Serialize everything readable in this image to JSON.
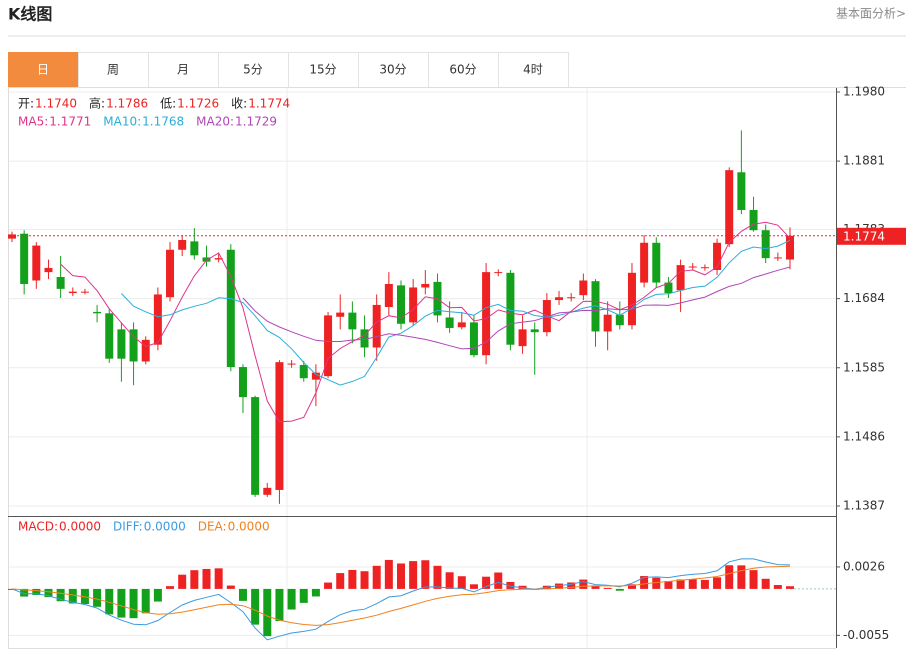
{
  "header": {
    "title": "K线图",
    "link": "基本面分析>"
  },
  "tabs": [
    "日",
    "周",
    "月",
    "5分",
    "15分",
    "30分",
    "60分",
    "4时"
  ],
  "chart_data": {
    "type": "candlestick",
    "ohlc_labels": [
      {
        "label": "开:",
        "value": "1.1740"
      },
      {
        "label": "高:",
        "value": "1.1786"
      },
      {
        "label": "低:",
        "value": "1.1726"
      },
      {
        "label": "收:",
        "value": "1.1774"
      }
    ],
    "ma": [
      {
        "label": "MA5: ",
        "value": "1.1771",
        "color": "#e0338a"
      },
      {
        "label": "MA10: ",
        "value": "1.1768",
        "color": "#2aaed8"
      },
      {
        "label": "MA20: ",
        "value": "1.1729",
        "color": "#b146b8"
      }
    ],
    "up_color": "#ee2222",
    "down_color": "#13a11c",
    "open": [
      1.177,
      1.1777,
      1.171,
      1.1722,
      1.1715,
      1.1692,
      1.1693,
      1.1665,
      1.1663,
      1.164,
      1.164,
      1.1594,
      1.1618,
      1.1686,
      1.1754,
      1.1766,
      1.1743,
      1.174,
      1.1754,
      1.1586,
      1.1543,
      1.1403,
      1.141,
      1.159,
      1.1589,
      1.1568,
      1.1573,
      1.1658,
      1.1664,
      1.164,
      1.1614,
      1.1672,
      1.1703,
      1.165,
      1.17,
      1.1708,
      1.1657,
      1.1643,
      1.165,
      1.1603,
      1.1721,
      1.1721,
      1.1616,
      1.164,
      1.1636,
      1.1682,
      1.1685,
      1.1689,
      1.1709,
      1.1637,
      1.1661,
      1.1646,
      1.1707,
      1.1764,
      1.1707,
      1.1696,
      1.1729,
      1.1728,
      1.1725,
      1.1762,
      1.1865,
      1.1811,
      1.1782,
      1.1742,
      1.174
    ],
    "high": [
      1.178,
      1.1782,
      1.1765,
      1.174,
      1.1745,
      1.17,
      1.1698,
      1.1675,
      1.167,
      1.165,
      1.165,
      1.163,
      1.17,
      1.1765,
      1.1775,
      1.1785,
      1.176,
      1.1748,
      1.1762,
      1.159,
      1.1545,
      1.142,
      1.1596,
      1.1596,
      1.1595,
      1.159,
      1.1665,
      1.169,
      1.168,
      1.166,
      1.169,
      1.1722,
      1.171,
      1.1712,
      1.1725,
      1.172,
      1.168,
      1.1665,
      1.166,
      1.1735,
      1.1726,
      1.1725,
      1.166,
      1.165,
      1.1692,
      1.1695,
      1.1692,
      1.172,
      1.1712,
      1.168,
      1.168,
      1.1735,
      1.1775,
      1.1772,
      1.1715,
      1.174,
      1.1735,
      1.1733,
      1.177,
      1.1872,
      1.1925,
      1.183,
      1.179,
      1.175,
      1.1786
    ],
    "low": [
      1.1765,
      1.169,
      1.1698,
      1.1712,
      1.1685,
      1.1688,
      1.169,
      1.165,
      1.1592,
      1.1565,
      1.156,
      1.159,
      1.161,
      1.168,
      1.1745,
      1.174,
      1.173,
      1.1736,
      1.158,
      1.152,
      1.14,
      1.14,
      1.139,
      1.1585,
      1.1565,
      1.153,
      1.157,
      1.164,
      1.162,
      1.16,
      1.1595,
      1.166,
      1.164,
      1.1645,
      1.169,
      1.165,
      1.1635,
      1.164,
      1.16,
      1.159,
      1.1716,
      1.161,
      1.1605,
      1.1575,
      1.163,
      1.1675,
      1.168,
      1.1682,
      1.1615,
      1.161,
      1.164,
      1.164,
      1.17,
      1.17,
      1.1685,
      1.1665,
      1.1725,
      1.1724,
      1.1718,
      1.1758,
      1.1805,
      1.178,
      1.1735,
      1.1738,
      1.1726
    ],
    "close": [
      1.1776,
      1.1705,
      1.176,
      1.1728,
      1.1698,
      1.1694,
      1.1694,
      1.1663,
      1.1598,
      1.1598,
      1.1594,
      1.1625,
      1.169,
      1.1754,
      1.1768,
      1.1746,
      1.1737,
      1.1742,
      1.1586,
      1.1543,
      1.1403,
      1.1413,
      1.1593,
      1.1591,
      1.157,
      1.1578,
      1.166,
      1.1664,
      1.164,
      1.1614,
      1.1675,
      1.1705,
      1.1648,
      1.17,
      1.1705,
      1.166,
      1.1642,
      1.165,
      1.1603,
      1.1722,
      1.1722,
      1.1618,
      1.164,
      1.1636,
      1.1682,
      1.1686,
      1.1686,
      1.171,
      1.1637,
      1.1661,
      1.1646,
      1.1721,
      1.1764,
      1.1707,
      1.1692,
      1.1732,
      1.173,
      1.1729,
      1.1764,
      1.1868,
      1.1811,
      1.1782,
      1.1742,
      1.1743,
      1.1774
    ],
    "ylim": [
      1.13741,
      1.19857
    ],
    "yticks": [
      {
        "value": 1.198,
        "label": "1.1980"
      },
      1.1881,
      1.1783,
      1.1684,
      1.1585,
      1.1486,
      1.1387
    ],
    "macd": {
      "legend": [
        {
          "label": "MACD:",
          "value": "0.0000",
          "color": "#ee2222"
        },
        {
          "label": "DIFF:",
          "value": "0.0000",
          "color": "#3a9be0"
        },
        {
          "label": "DEA:",
          "value": "0.0000",
          "color": "#f0821e"
        }
      ],
      "ylim": [
        -0.007,
        0.0084
      ],
      "yticks": [
        0.0026,
        -0.0055
      ]
    }
  }
}
